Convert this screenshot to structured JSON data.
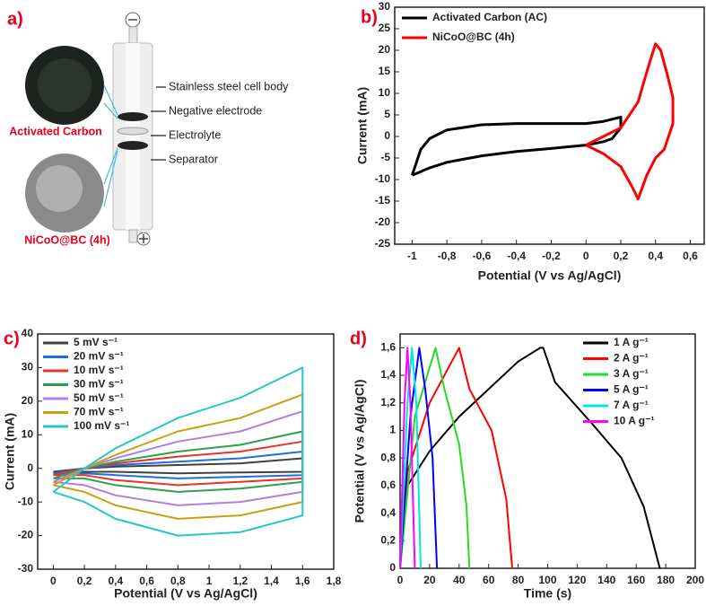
{
  "diagram": {
    "label": "a)",
    "callouts": [
      "Stainless steel cell body",
      "Negative electrode",
      "Electrolyte",
      "Separator"
    ],
    "samples": [
      "Activated Carbon",
      "NiCoO@BC (4h)"
    ]
  },
  "chart_data": [
    {
      "type": "line",
      "label": "b)",
      "xlabel": "Potential (V vs Ag/AgCl)",
      "ylabel": "Current (mA)",
      "xlim": [
        -1.1,
        0.68
      ],
      "ylim": [
        -25,
        30
      ],
      "xticks": [
        -1,
        {
          "value": -0.8,
          "label": "-0,8"
        },
        {
          "value": -0.6,
          "label": "-0,6"
        },
        {
          "value": -0.4,
          "label": "-0,4"
        },
        {
          "value": -0.2,
          "label": "-0,2"
        },
        0,
        {
          "value": 0.2,
          "label": "0,2"
        },
        {
          "value": 0.4,
          "label": "0,4"
        },
        {
          "value": 0.6,
          "label": "0,6"
        }
      ],
      "yticks": [
        -25,
        -20,
        -15,
        -10,
        -5,
        0,
        5,
        10,
        15,
        20,
        25,
        30
      ],
      "legend": "upper left",
      "series": [
        {
          "name": "Activated Carbon (AC)",
          "color": "#000000",
          "x": [
            -1,
            -0.95,
            -0.9,
            -0.8,
            -0.6,
            -0.4,
            -0.2,
            0,
            0.1,
            0.2,
            0.2,
            0.15,
            0.1,
            0,
            -0.2,
            -0.4,
            -0.6,
            -0.8,
            -0.9,
            -1
          ],
          "values": [
            -9,
            -3,
            -0.5,
            1.5,
            2.7,
            3,
            3,
            3,
            3.5,
            4.5,
            2,
            -0.5,
            -1.2,
            -2,
            -2.8,
            -3.5,
            -4.5,
            -6,
            -7.3,
            -9
          ]
        },
        {
          "name": "NiCoO@BC (4h)",
          "color": "#ff0000",
          "x": [
            0,
            0.1,
            0.2,
            0.3,
            0.35,
            0.4,
            0.43,
            0.47,
            0.5,
            0.5,
            0.45,
            0.4,
            0.35,
            0.3,
            0.27,
            0.2,
            0.1,
            0
          ],
          "values": [
            -2,
            0,
            2,
            8,
            15,
            21.5,
            20,
            14,
            9,
            3,
            -3,
            -5,
            -9,
            -14.5,
            -12,
            -7,
            -4,
            -2
          ]
        }
      ]
    },
    {
      "type": "line",
      "label": "c)",
      "xlabel": "Potential (V vs Ag/AgCl)",
      "ylabel": "Current (mA)",
      "xlim": [
        -0.1,
        1.8
      ],
      "ylim": [
        -30,
        40
      ],
      "xticks": [
        0,
        {
          "value": 0.2,
          "label": "0,2"
        },
        {
          "value": 0.4,
          "label": "0,4"
        },
        {
          "value": 0.6,
          "label": "0,6"
        },
        {
          "value": 0.8,
          "label": "0,8"
        },
        1,
        {
          "value": 1.2,
          "label": "1,2"
        },
        {
          "value": 1.4,
          "label": "1,4"
        },
        {
          "value": 1.6,
          "label": "1,6"
        },
        {
          "value": 1.8,
          "label": "1,8"
        }
      ],
      "yticks": [
        -30,
        -20,
        -10,
        0,
        10,
        20,
        30,
        40
      ],
      "legend": "upper left",
      "x": [
        0,
        0.2,
        0.4,
        0.8,
        1.2,
        1.6,
        1.6,
        1.2,
        0.8,
        0.4,
        0.2,
        0
      ],
      "series": [
        {
          "name": "5 mV s⁻¹",
          "color": "#404040",
          "values": [
            -1,
            0,
            0.5,
            1,
            1.5,
            3,
            -1,
            -1.2,
            -1.5,
            -1,
            -1,
            -1
          ]
        },
        {
          "name": "20 mV s⁻¹",
          "color": "#1f6fd6",
          "values": [
            -1.5,
            0,
            1,
            2,
            3,
            5,
            -2,
            -2.5,
            -3,
            -2,
            -1.5,
            -1.5
          ]
        },
        {
          "name": "10 mV s⁻¹",
          "color": "#e8322e",
          "values": [
            -2,
            0,
            1.5,
            3.5,
            5,
            8,
            -3,
            -4,
            -5,
            -3.5,
            -2,
            -2
          ]
        },
        {
          "name": "30 mV s⁻¹",
          "color": "#2e9e4f",
          "values": [
            -3,
            0,
            2,
            5,
            7,
            11,
            -4,
            -6,
            -7,
            -5,
            -3,
            -3
          ]
        },
        {
          "name": "50 mV s⁻¹",
          "color": "#b07fe0",
          "values": [
            -4,
            0,
            3,
            8,
            11,
            17,
            -7,
            -10,
            -11,
            -8,
            -5,
            -4
          ]
        },
        {
          "name": "70 mV s⁻¹",
          "color": "#c9a010",
          "values": [
            -5,
            0,
            4,
            11,
            15,
            22,
            -10,
            -14,
            -15,
            -11,
            -7,
            -5
          ]
        },
        {
          "name": "100 mV s⁻¹",
          "color": "#22c9c4",
          "values": [
            -7,
            0,
            6,
            15,
            21,
            30,
            -14,
            -19,
            -20,
            -15,
            -10,
            -7
          ]
        }
      ]
    },
    {
      "type": "line",
      "label": "d)",
      "xlabel": "Time (s)",
      "ylabel": "Potential (V vs Ag/AgCl)",
      "xlim": [
        0,
        200
      ],
      "ylim": [
        0,
        1.7
      ],
      "xticks": [
        0,
        20,
        40,
        60,
        80,
        100,
        120,
        140,
        160,
        180,
        200
      ],
      "yticks": [
        0,
        {
          "value": 0.2,
          "label": "0,2"
        },
        {
          "value": 0.4,
          "label": "0,4"
        },
        {
          "value": 0.6,
          "label": "0,6"
        },
        {
          "value": 0.8,
          "label": "0,8"
        },
        1,
        {
          "value": 1.2,
          "label": "1,2"
        },
        {
          "value": 1.4,
          "label": "1,4"
        },
        {
          "value": 1.6,
          "label": "1,6"
        }
      ],
      "legend": "upper right",
      "series": [
        {
          "name": "1 A g⁻¹",
          "color": "#000000",
          "x": [
            0,
            5,
            20,
            40,
            60,
            80,
            95,
            97,
            105,
            130,
            150,
            165,
            176
          ],
          "values": [
            0,
            0.6,
            0.85,
            1.1,
            1.3,
            1.5,
            1.6,
            1.6,
            1.35,
            1.05,
            0.8,
            0.45,
            0
          ]
        },
        {
          "name": "2 A g⁻¹",
          "color": "#ff0000",
          "x": [
            0,
            5,
            20,
            40,
            47,
            62,
            72,
            76
          ],
          "values": [
            0,
            0.7,
            1.2,
            1.6,
            1.3,
            1,
            0.5,
            0
          ]
        },
        {
          "name": "3 A g⁻¹",
          "color": "#22dd22",
          "x": [
            0,
            10,
            24,
            30,
            40,
            45,
            47
          ],
          "values": [
            0,
            1.1,
            1.6,
            1.3,
            0.9,
            0.45,
            0
          ]
        },
        {
          "name": "5 A g⁻¹",
          "color": "#0000ff",
          "x": [
            0,
            7,
            13,
            17,
            22,
            25
          ],
          "values": [
            0,
            1.1,
            1.6,
            1.3,
            0.8,
            0
          ]
        },
        {
          "name": "7 A g⁻¹",
          "color": "#00e5e5",
          "x": [
            0,
            5,
            8,
            11,
            14
          ],
          "values": [
            0,
            1.2,
            1.6,
            1.2,
            0
          ]
        },
        {
          "name": "10 A g⁻¹",
          "color": "#ff00ff",
          "x": [
            0,
            3,
            5,
            7,
            10
          ],
          "values": [
            0,
            1.2,
            1.6,
            1.2,
            0
          ]
        }
      ]
    }
  ]
}
